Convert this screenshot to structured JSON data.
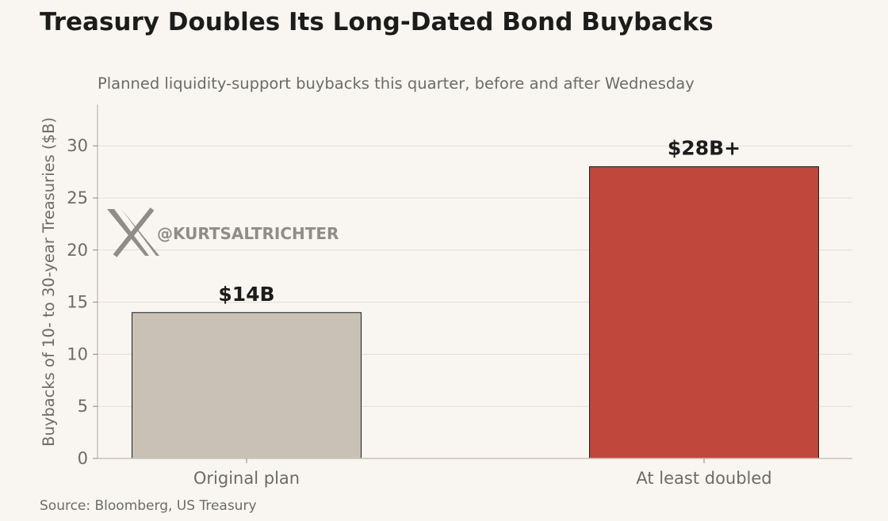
{
  "chart_data": {
    "type": "bar",
    "title": "Treasury Doubles Its Long-Dated Bond Buybacks",
    "subtitle": "Planned liquidity-support buybacks this quarter, before and after Wednesday",
    "xlabel": "",
    "ylabel": "Buybacks of 10- to 30-year Treasuries ($B)",
    "categories": [
      "Original plan",
      "At least doubled"
    ],
    "values": [
      14,
      28
    ],
    "data_labels": [
      "$14B",
      "$28B+"
    ],
    "bar_colors": [
      "#c9c1b6",
      "#c0473c"
    ],
    "ylim": [
      0,
      34
    ],
    "yticks": [
      0,
      5,
      10,
      15,
      20,
      25,
      30
    ],
    "grid": true,
    "source": "Source: Bloomberg, US Treasury",
    "watermark": "@KURTSALTRICHTER"
  }
}
